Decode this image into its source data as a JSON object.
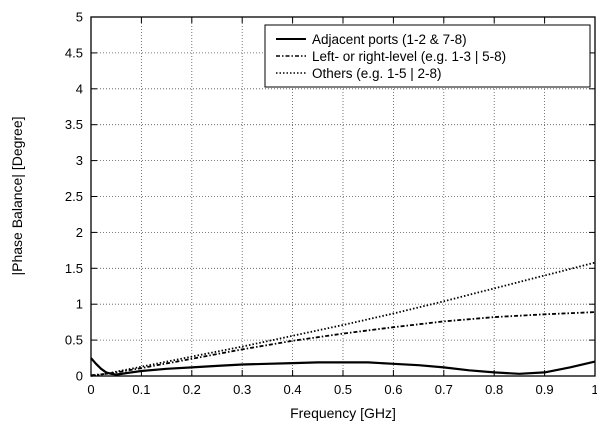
{
  "chart_data": {
    "type": "line",
    "title": "",
    "xlabel": "Frequency [GHz]",
    "ylabel": "|Phase Balance| [Degree]",
    "xlim": [
      0,
      1
    ],
    "ylim": [
      0,
      5
    ],
    "grid": true,
    "legend_position": "top-right",
    "x_ticks": [
      "0",
      "0.1",
      "0.2",
      "0.3",
      "0.4",
      "0.5",
      "0.6",
      "0.7",
      "0.8",
      "0.9",
      "1"
    ],
    "y_ticks": [
      "0",
      "0.5",
      "1",
      "1.5",
      "2",
      "2.5",
      "3",
      "3.5",
      "4",
      "4.5",
      "5"
    ],
    "series": [
      {
        "name": "Adjacent ports (1-2 & 7-8)",
        "style": "solid",
        "x": [
          0,
          0.01,
          0.02,
          0.03,
          0.04,
          0.05,
          0.07,
          0.1,
          0.15,
          0.2,
          0.25,
          0.3,
          0.35,
          0.4,
          0.45,
          0.5,
          0.55,
          0.6,
          0.65,
          0.7,
          0.75,
          0.8,
          0.85,
          0.9,
          0.95,
          1.0
        ],
        "y": [
          0.25,
          0.17,
          0.1,
          0.05,
          0.03,
          0.02,
          0.04,
          0.07,
          0.1,
          0.12,
          0.14,
          0.16,
          0.17,
          0.18,
          0.19,
          0.19,
          0.19,
          0.17,
          0.15,
          0.12,
          0.08,
          0.05,
          0.03,
          0.05,
          0.12,
          0.2
        ]
      },
      {
        "name": "Left- or right-level (e.g. 1-3 | 5-8)",
        "style": "dashdot",
        "x": [
          0,
          0.03,
          0.05,
          0.1,
          0.2,
          0.3,
          0.4,
          0.5,
          0.6,
          0.7,
          0.8,
          0.9,
          1.0
        ],
        "y": [
          0.01,
          0.03,
          0.05,
          0.11,
          0.24,
          0.37,
          0.49,
          0.59,
          0.68,
          0.76,
          0.82,
          0.86,
          0.89
        ]
      },
      {
        "name": "Others (e.g. 1-5 | 2-8)",
        "style": "dotted",
        "x": [
          0,
          0.03,
          0.05,
          0.1,
          0.2,
          0.3,
          0.4,
          0.5,
          0.6,
          0.7,
          0.8,
          0.9,
          1.0
        ],
        "y": [
          0.0,
          0.03,
          0.06,
          0.13,
          0.27,
          0.41,
          0.56,
          0.71,
          0.87,
          1.04,
          1.22,
          1.4,
          1.58
        ]
      }
    ]
  }
}
